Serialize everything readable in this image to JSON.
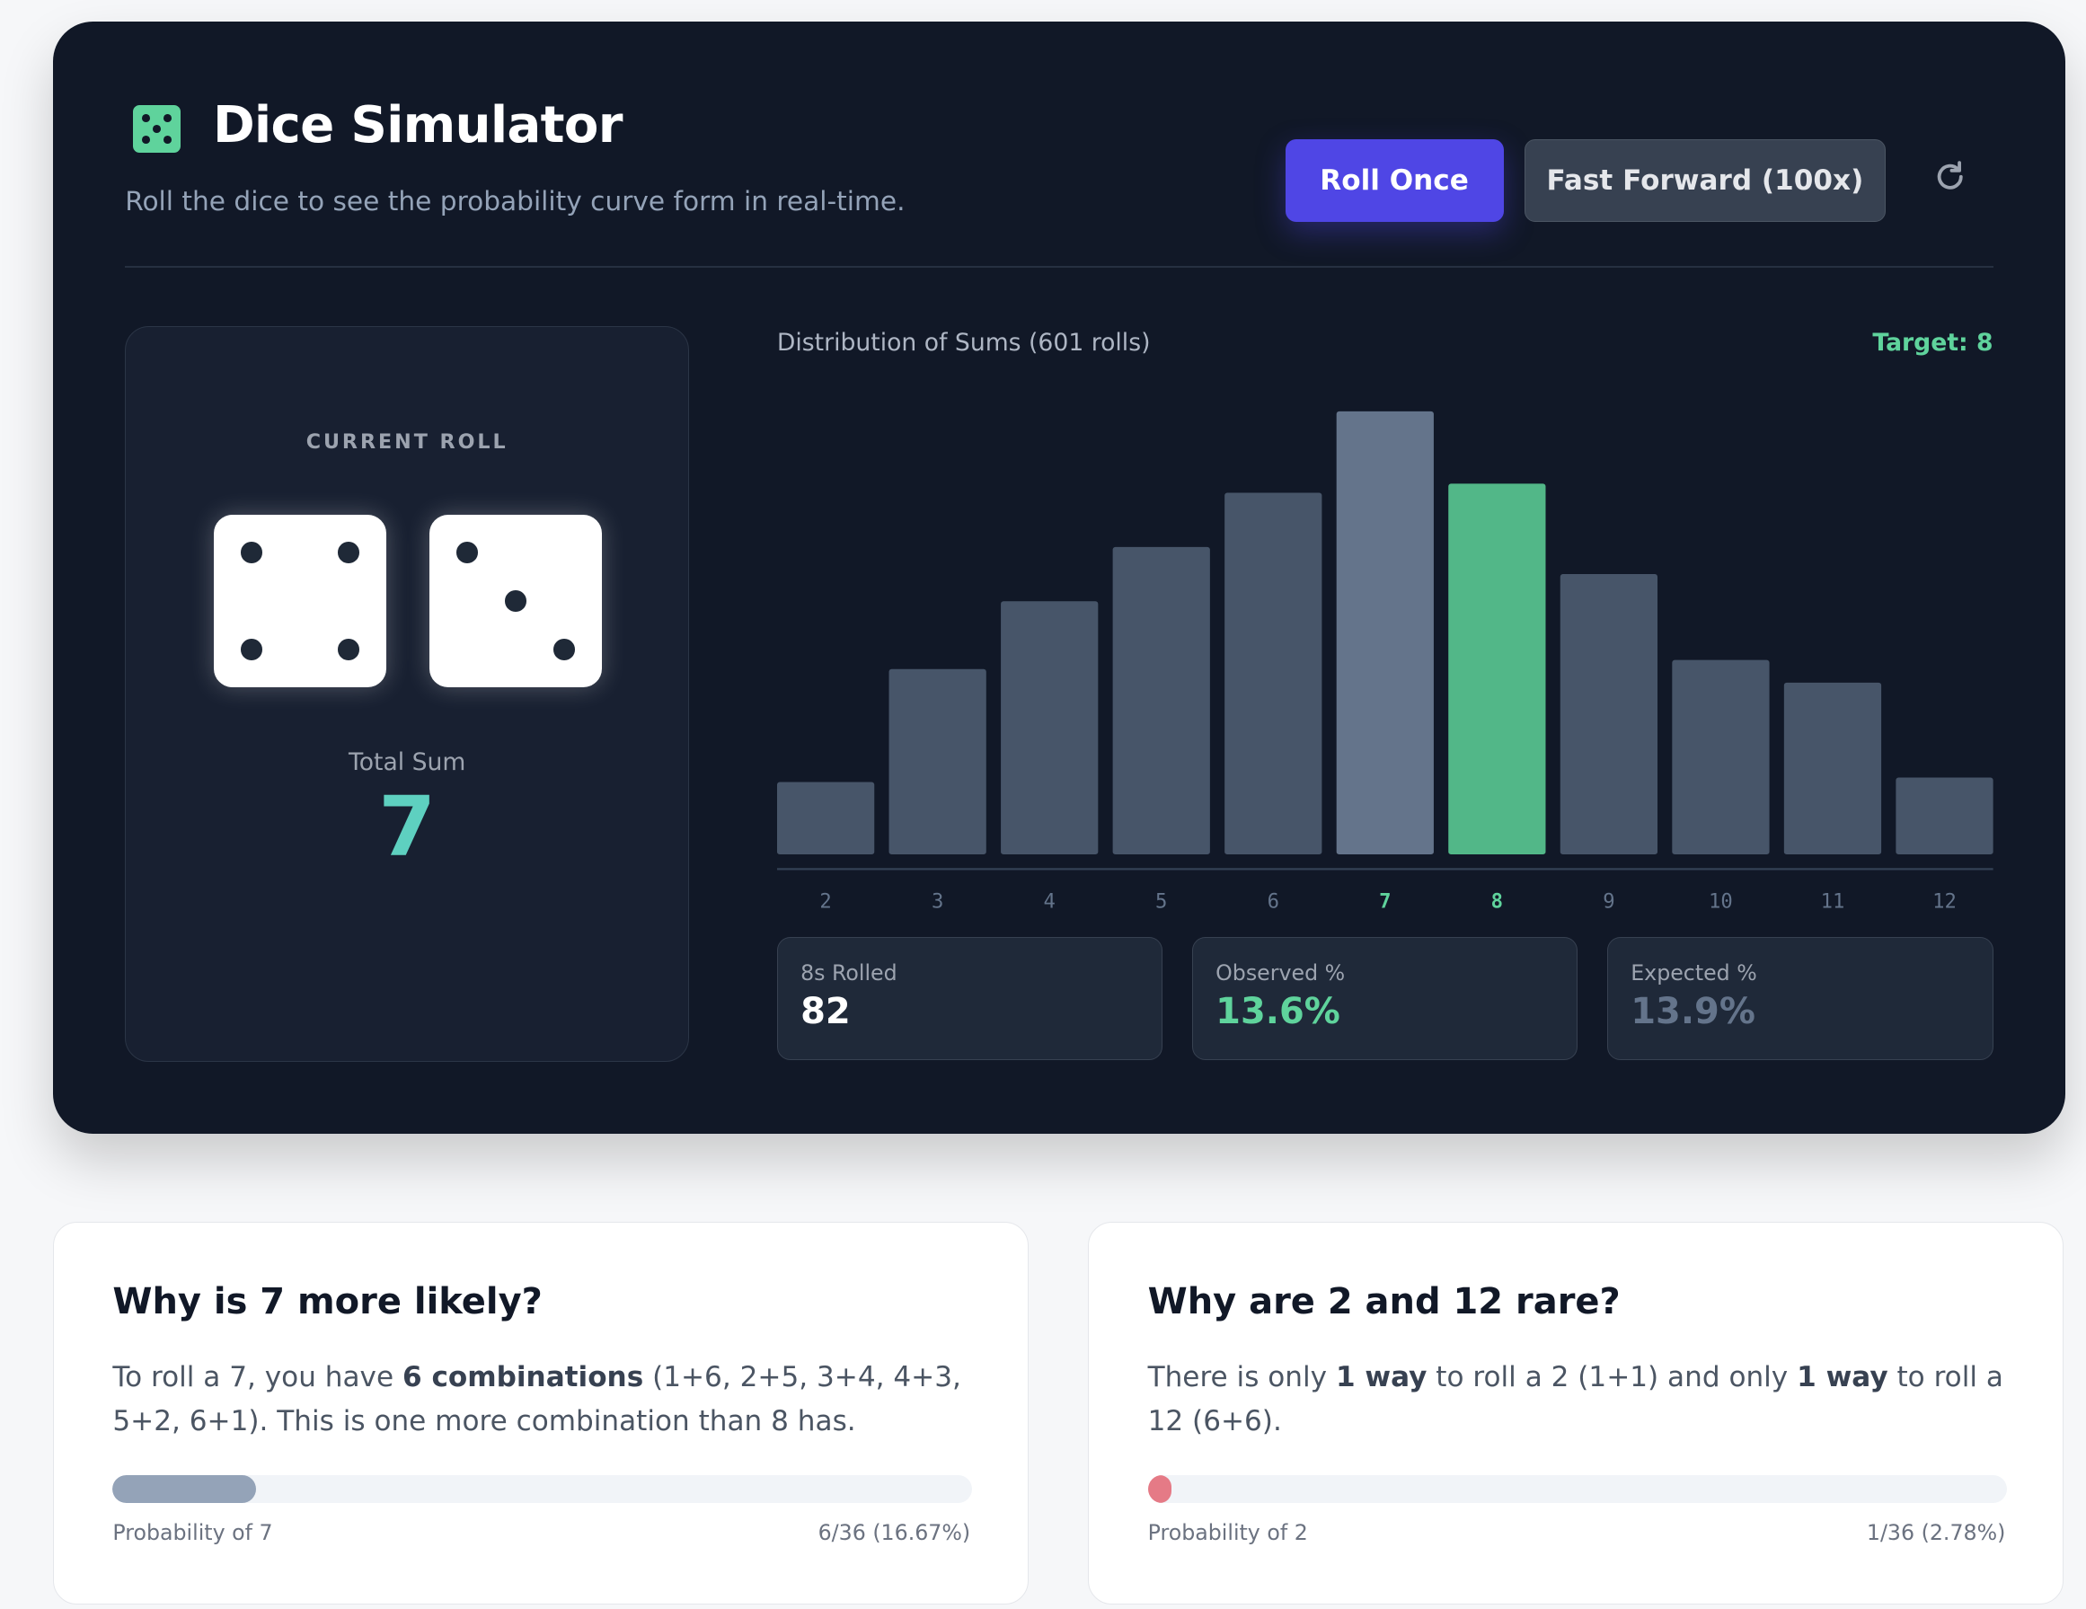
{
  "header": {
    "logo_icon": "dice-five-icon",
    "title": "Dice Simulator",
    "subtitle": "Roll the dice to see the probability curve form in real-time.",
    "roll_once_label": "Roll Once",
    "fast_forward_label": "Fast Forward (100x)",
    "reset_icon": "refresh-icon"
  },
  "current_roll": {
    "label": "CURRENT ROLL",
    "dice": [
      4,
      3
    ],
    "total_label": "Total Sum",
    "total_value": "7"
  },
  "chart_header": {
    "title": "Distribution of Sums (601 rolls)",
    "target": "Target: 8"
  },
  "chart_data": {
    "type": "bar",
    "title": "Distribution of Sums (601 rolls)",
    "categories": [
      "2",
      "3",
      "4",
      "5",
      "6",
      "7",
      "8",
      "9",
      "10",
      "11",
      "12"
    ],
    "values": [
      16,
      41,
      56,
      68,
      80,
      98,
      82,
      62,
      43,
      38,
      17
    ],
    "highlight": {
      "current": "7",
      "target": "8"
    },
    "colors": {
      "default": "#475569",
      "current": "#64748b",
      "target": "#52b788",
      "label_highlight": "#5fd39c",
      "label_default": "#64748b"
    },
    "grid": false
  },
  "stats": [
    {
      "label": "8s Rolled",
      "value": "82",
      "color": "#ffffff"
    },
    {
      "label": "Observed %",
      "value": "13.6%",
      "color": "#5fd39c"
    },
    {
      "label": "Expected %",
      "value": "13.9%",
      "color": "#64748b"
    }
  ],
  "info_cards": [
    {
      "title": "Why is 7 more likely?",
      "text": [
        {
          "t": "To roll a 7, you have ",
          "b": false
        },
        {
          "t": "6 combinations",
          "b": true
        },
        {
          "t": " (1+6, 2+5, 3+4, 4+3, 5+2, 6+1). This is one more combination than 8 has.",
          "b": false
        }
      ],
      "prob_label": "Probability of 7",
      "prob_value": "6/36 (16.67%)",
      "prob_fraction": 0.1667,
      "bar_color": "#94a3b8"
    },
    {
      "title": "Why are 2 and 12 rare?",
      "text": [
        {
          "t": "There is only ",
          "b": false
        },
        {
          "t": "1 way",
          "b": true
        },
        {
          "t": " to roll a 2 (1+1) and only ",
          "b": false
        },
        {
          "t": "1 way",
          "b": true
        },
        {
          "t": " to roll a 12 (6+6).",
          "b": false
        }
      ],
      "prob_label": "Probability of 2",
      "prob_value": "1/36 (2.78%)",
      "prob_fraction": 0.0278,
      "bar_color": "#e57a86"
    }
  ]
}
